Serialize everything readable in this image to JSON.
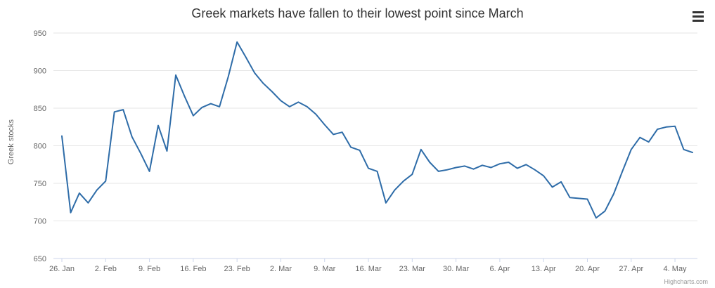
{
  "chart_data": {
    "type": "line",
    "title": "Greek markets have fallen to their lowest point since March",
    "xlabel": "",
    "ylabel": "Greek stocks",
    "ylim": [
      650,
      950
    ],
    "yticks": [
      650,
      700,
      750,
      800,
      850,
      900,
      950
    ],
    "x_tick_labels": [
      "26. Jan",
      "2. Feb",
      "9. Feb",
      "16. Feb",
      "23. Feb",
      "2. Mar",
      "9. Mar",
      "16. Mar",
      "23. Mar",
      "30. Mar",
      "6. Apr",
      "13. Apr",
      "20. Apr",
      "27. Apr",
      "4. May"
    ],
    "points_per_tick": 5,
    "grid": true,
    "legend": "none",
    "series": [
      {
        "name": "Greek stocks",
        "color": "#2e6ca8",
        "values": [
          813,
          711,
          737,
          724,
          741,
          753,
          845,
          848,
          812,
          790,
          766,
          827,
          793,
          894,
          866,
          840,
          851,
          856,
          852,
          892,
          938,
          918,
          897,
          883,
          872,
          860,
          852,
          858,
          852,
          842,
          828,
          815,
          818,
          798,
          794,
          770,
          766,
          724,
          741,
          753,
          762,
          795,
          778,
          766,
          768,
          771,
          773,
          769,
          774,
          771,
          776,
          778,
          770,
          775,
          768,
          760,
          745,
          752,
          731,
          730,
          729,
          704,
          713,
          736,
          766,
          795,
          811,
          805,
          822,
          825,
          826,
          795,
          791
        ]
      }
    ],
    "colors": {
      "grid": "#e6e6e6",
      "axis_line": "#ccd6eb",
      "tick_label": "#666666",
      "title": "#333333"
    },
    "credit": "Highcharts.com"
  },
  "controls": {
    "context_menu_tooltip": "Chart context menu"
  }
}
